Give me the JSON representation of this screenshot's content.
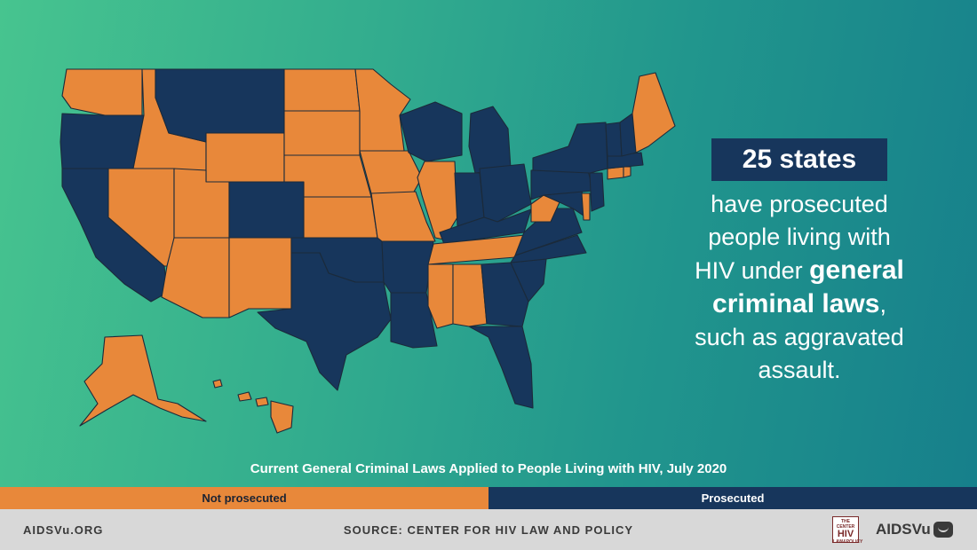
{
  "headline": "25 states",
  "body": {
    "line1": "have prosecuted",
    "line2": "people living with",
    "line3_pre": "HIV under ",
    "line3_bold": "general",
    "line4_bold": "criminal laws",
    "line4_post": ",",
    "line5": "such as aggravated",
    "line6": "assault."
  },
  "chart_title": "Current General Criminal Laws Applied to People Living with HIV, July 2020",
  "legend": {
    "not_prosecuted": "Not prosecuted",
    "prosecuted": "Prosecuted"
  },
  "colors": {
    "not_prosecuted": "#e8883a",
    "prosecuted": "#17365c"
  },
  "footer": {
    "site": "AIDSVu.ORG",
    "source": "SOURCE: CENTER FOR HIV LAW AND POLICY",
    "partner_logo": "THE CENTER HIV LAW & POLICY",
    "brand": "AIDSVu"
  },
  "states": {
    "prosecuted": [
      "OR",
      "CA",
      "MT",
      "CO",
      "TX",
      "OK",
      "AR",
      "LA",
      "WI",
      "MI",
      "IN",
      "OH",
      "KY",
      "GA",
      "FL",
      "SC",
      "NC",
      "VA",
      "MD",
      "PA",
      "NY",
      "VT",
      "NH",
      "NJ",
      "MA"
    ],
    "not_prosecuted": [
      "WA",
      "ID",
      "NV",
      "UT",
      "AZ",
      "NM",
      "WY",
      "ND",
      "SD",
      "NE",
      "KS",
      "MN",
      "IA",
      "MO",
      "IL",
      "TN",
      "MS",
      "AL",
      "WV",
      "DE",
      "CT",
      "RI",
      "ME",
      "AK",
      "HI"
    ]
  }
}
